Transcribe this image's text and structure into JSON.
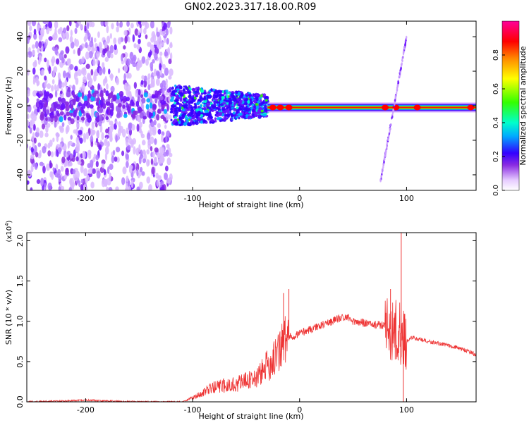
{
  "title": "GN02.2023.317.18.00.R09",
  "chart_data": [
    {
      "type": "heatmap",
      "name": "spectrogram",
      "xlabel": "Height of straight line (km)",
      "ylabel": "Frequency (Hz)",
      "xlim": [
        -255,
        165
      ],
      "ylim": [
        -49,
        49
      ],
      "xticks": [
        -200,
        -100,
        0,
        100
      ],
      "yticks": [
        -40,
        -20,
        0,
        20,
        40
      ],
      "colorbar": {
        "label": "Normalized spectral amplitude",
        "range": [
          0,
          1
        ],
        "ticks": [
          "0.0",
          "0.2",
          "0.4",
          "0.6",
          "0.8"
        ],
        "colormap": [
          "#ffffff",
          "#e6ccff",
          "#8a2be2",
          "#3300ff",
          "#00aaff",
          "#00ffcc",
          "#33ff00",
          "#ffff00",
          "#ff8800",
          "#ff0000",
          "#ff0099"
        ]
      },
      "features": [
        {
          "x_range": [
            -255,
            -120
          ],
          "freq_range": [
            -49,
            49
          ],
          "amplitude": 0.15
        },
        {
          "x_range": [
            -120,
            -30
          ],
          "freq_range": [
            -12,
            12
          ],
          "amplitude": 0.3
        },
        {
          "x_range": [
            -30,
            165
          ],
          "center_freq": -1,
          "amplitude": 1.0
        },
        {
          "x_range": [
            75,
            100
          ],
          "line": "streak",
          "freq_range": [
            -46,
            40
          ],
          "amplitude": 0.2
        }
      ]
    },
    {
      "type": "line",
      "name": "snr",
      "xlabel": "Height of straight line (km)",
      "ylabel": "SNR (10 * v/v)",
      "yscale_label": "(x10^4)",
      "xlim": [
        -255,
        165
      ],
      "ylim": [
        0,
        2.1
      ],
      "xticks": [
        -200,
        -100,
        0,
        100
      ],
      "yticks": [
        "0.0",
        "0.5",
        "1.0",
        "1.5",
        "2.0"
      ],
      "color": "#ee3333",
      "envelope": {
        "x": [
          -255,
          -200,
          -150,
          -110,
          -100,
          -90,
          -80,
          -60,
          -40,
          -30,
          -20,
          -15,
          -10,
          0,
          10,
          20,
          30,
          40,
          45,
          50,
          60,
          70,
          80,
          85,
          90,
          95,
          100,
          105,
          110,
          120,
          140,
          160,
          165
        ],
        "y": [
          0.0,
          0.02,
          0.0,
          0.0,
          0.05,
          0.12,
          0.18,
          0.22,
          0.3,
          0.45,
          0.6,
          0.75,
          0.8,
          0.85,
          0.9,
          0.95,
          1.0,
          1.05,
          1.05,
          1.0,
          0.98,
          0.96,
          0.95,
          0.9,
          0.88,
          0.85,
          0.75,
          0.8,
          0.78,
          0.75,
          0.7,
          0.62,
          0.58
        ]
      },
      "spikes": [
        {
          "x": -15,
          "y": 1.35
        },
        {
          "x": -10,
          "y": 1.4
        },
        {
          "x": 85,
          "y": 1.4
        },
        {
          "x": 95,
          "y": 2.1
        },
        {
          "x": 97,
          "y": 0.0
        }
      ]
    }
  ]
}
